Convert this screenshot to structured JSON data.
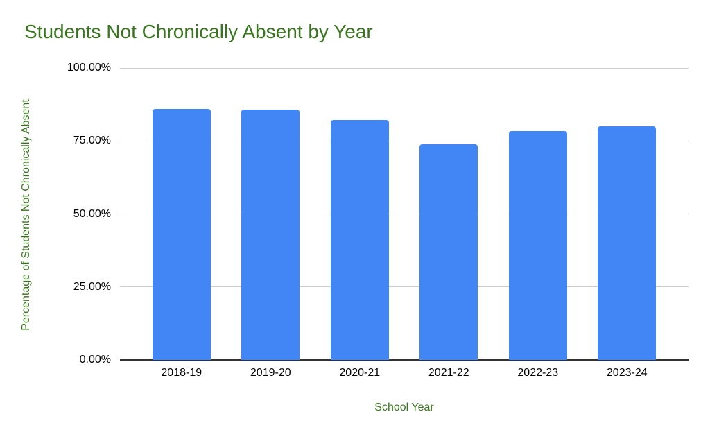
{
  "chart_data": {
    "type": "bar",
    "title": "Students Not Chronically Absent by Year",
    "xlabel": "School Year",
    "ylabel": "Percentage of Students Not Chronically Absent",
    "categories": [
      "2018-19",
      "2019-20",
      "2020-21",
      "2021-22",
      "2022-23",
      "2023-24"
    ],
    "values": [
      85.9,
      85.8,
      82.2,
      73.8,
      78.3,
      80.0
    ],
    "yticks": [
      0,
      25,
      50,
      75,
      100
    ],
    "ytick_labels": [
      "0.00%",
      "25.00%",
      "50.00%",
      "75.00%",
      "100.00%"
    ],
    "ylim": [
      0,
      100
    ],
    "grid": true,
    "legend": "none",
    "colors": {
      "bar": "#4285f4",
      "title_text": "#38761d",
      "axis_title_text": "#38761d",
      "tick_text": "#000000",
      "gridline": "#cccccc",
      "axis_line": "#333333",
      "background": "#ffffff"
    }
  }
}
